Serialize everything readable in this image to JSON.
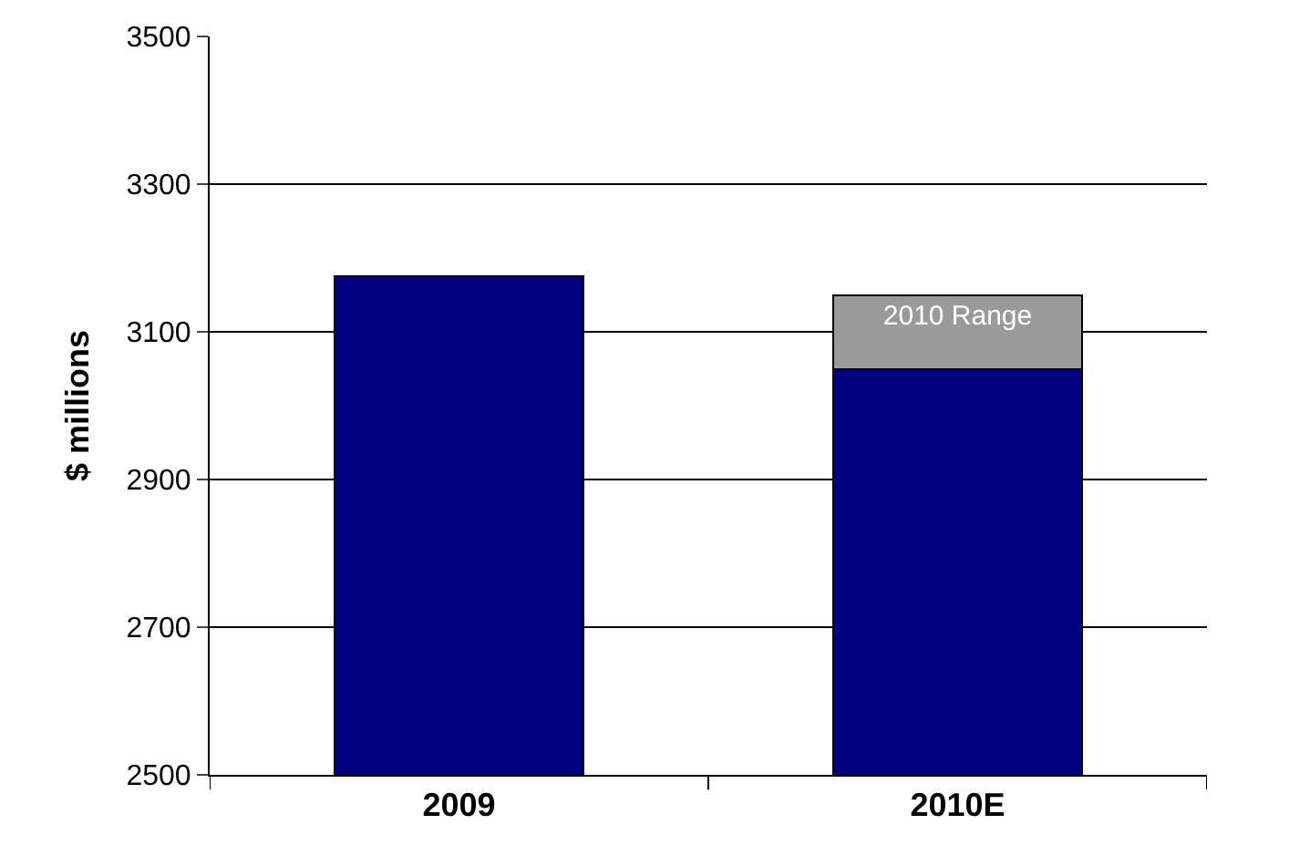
{
  "chart_data": {
    "type": "bar",
    "stacked": true,
    "ylabel": "$ millions",
    "categories": [
      "2009",
      "2010E"
    ],
    "series": [
      {
        "color": "#000080",
        "values": [
          3175,
          3050
        ]
      },
      {
        "name": "2010 Range",
        "color": "#9a9a9a",
        "values": [
          null,
          100
        ],
        "base": [
          null,
          3050
        ]
      }
    ],
    "ylim": [
      2500,
      3500
    ],
    "yticks": [
      2500,
      2700,
      2900,
      3100,
      3300,
      3500
    ],
    "grid": "y",
    "legend": false
  }
}
